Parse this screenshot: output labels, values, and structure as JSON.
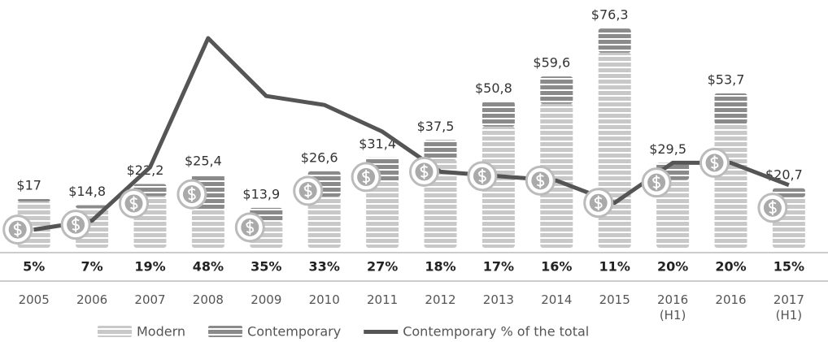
{
  "chart_data": {
    "type": "bar",
    "stacked": true,
    "categories": [
      "2005",
      "2006",
      "2007",
      "2008",
      "2009",
      "2010",
      "2011",
      "2012",
      "2013",
      "2014",
      "2015",
      "2016 (H1)",
      "2016",
      "2017 (H1)"
    ],
    "series": [
      {
        "name": "Modern",
        "color": "#c8c8c8",
        "values": [
          16.1,
          13.8,
          18.0,
          13.2,
          9.0,
          17.8,
          22.9,
          30.7,
          42.2,
          50.1,
          67.9,
          23.6,
          43.0,
          17.6
        ]
      },
      {
        "name": "Contemporary",
        "color": "#8a8a8a",
        "values": [
          0.9,
          1.0,
          4.2,
          12.2,
          4.9,
          8.8,
          8.5,
          6.8,
          8.6,
          9.5,
          8.4,
          5.9,
          10.7,
          3.1
        ]
      },
      {
        "name": "Contemporary % of the total",
        "type": "line",
        "axis": "y2",
        "color": "#555555",
        "values": [
          5,
          7,
          19,
          48,
          35,
          33,
          27,
          18,
          17,
          16,
          11,
          20,
          20,
          15
        ],
        "value_labels": [
          "5%",
          "7%",
          "19%",
          "48%",
          "35%",
          "33%",
          "27%",
          "18%",
          "17%",
          "16%",
          "11%",
          "20%",
          "20%",
          "15%"
        ]
      }
    ],
    "totals": {
      "values": [
        17,
        14.8,
        22.2,
        25.4,
        13.9,
        26.6,
        31.4,
        37.5,
        50.8,
        59.6,
        76.3,
        29.5,
        53.7,
        20.7
      ],
      "value_labels": [
        "$17",
        "$14,8",
        "$22,2",
        "$25,4",
        "$13,9",
        "$26,6",
        "$31,4",
        "$37,5",
        "$50,8",
        "$59,6",
        "$76,3",
        "$29,5",
        "$53,7",
        "$20,7"
      ]
    },
    "ylim": [
      0,
      80
    ],
    "y2lim": [
      0,
      50
    ]
  }
}
